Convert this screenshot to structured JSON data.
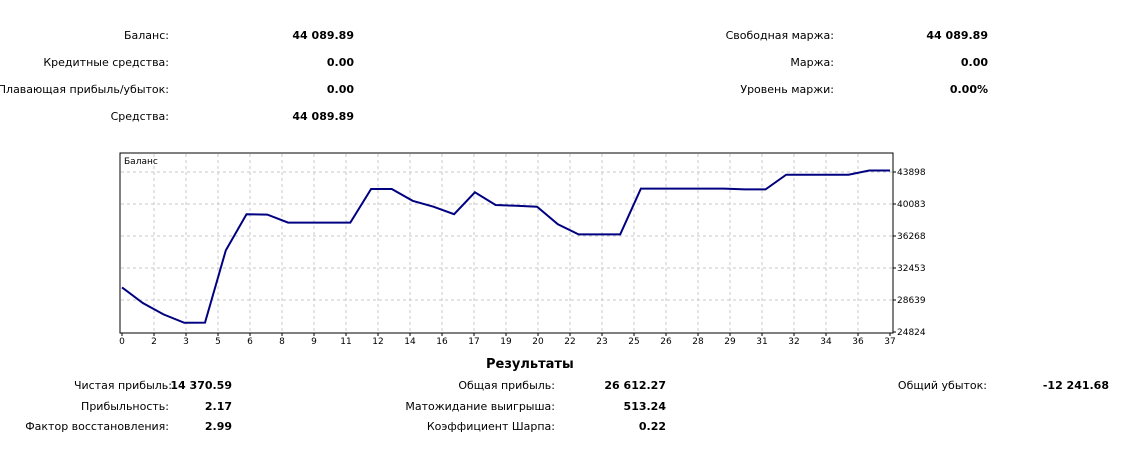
{
  "summary": {
    "balance": {
      "label": "Баланс:",
      "value": "44 089.89"
    },
    "credit": {
      "label": "Кредитные средства:",
      "value": "0.00"
    },
    "floating_pl": {
      "label": "Плавающая прибыль/убыток:",
      "value": "0.00"
    },
    "equity": {
      "label": "Средства:",
      "value": "44 089.89"
    },
    "free_margin": {
      "label": "Свободная маржа:",
      "value": "44 089.89"
    },
    "margin": {
      "label": "Маржа:",
      "value": "0.00"
    },
    "margin_level": {
      "label": "Уровень маржи:",
      "value": "0.00%"
    }
  },
  "chart_data": {
    "type": "line",
    "title": "Баланс",
    "x_ticks": [
      "0",
      "2",
      "3",
      "5",
      "6",
      "8",
      "9",
      "11",
      "12",
      "14",
      "16",
      "17",
      "19",
      "20",
      "22",
      "23",
      "25",
      "26",
      "28",
      "29",
      "31",
      "32",
      "34",
      "36",
      "37"
    ],
    "y_ticks": [
      "43898",
      "40083",
      "36268",
      "32453",
      "28639",
      "24824"
    ],
    "ylim": [
      24824,
      45500
    ],
    "xlim": [
      0,
      37
    ],
    "grid": true,
    "color": "#000080",
    "series": [
      {
        "x": [
          0,
          1,
          2,
          3,
          4,
          5,
          6,
          7,
          8,
          9,
          10,
          11,
          12,
          13,
          14,
          15,
          16,
          17,
          18,
          19,
          20,
          21,
          22,
          23,
          24,
          25,
          26,
          27,
          28,
          29,
          30,
          31,
          32,
          33,
          34,
          35,
          36,
          37
        ],
        "y": [
          30000,
          28150,
          26800,
          25800,
          25820,
          34400,
          38700,
          38650,
          37700,
          37700,
          37700,
          37700,
          41700,
          41700,
          40300,
          39600,
          38700,
          41300,
          39800,
          39700,
          39600,
          37500,
          36300,
          36300,
          36300,
          41750,
          41750,
          41750,
          41750,
          41750,
          41650,
          41650,
          43400,
          43400,
          43400,
          43400,
          43898,
          43898
        ]
      }
    ]
  },
  "results": {
    "title": "Результаты",
    "net_profit": {
      "label": "Чистая прибыль:",
      "value": "14 370.59"
    },
    "gross_profit": {
      "label": "Общая прибыль:",
      "value": "26 612.27"
    },
    "gross_loss": {
      "label": "Общий убыток:",
      "value": "-12 241.68"
    },
    "profit_factor": {
      "label": "Прибыльность:",
      "value": "2.17"
    },
    "expected_payoff": {
      "label": "Матожидание выигрыша:",
      "value": "513.24"
    },
    "recovery_factor": {
      "label": "Фактор восстановления:",
      "value": "2.99"
    },
    "sharpe": {
      "label": "Коэффициент Шарпа:",
      "value": "0.22"
    }
  }
}
